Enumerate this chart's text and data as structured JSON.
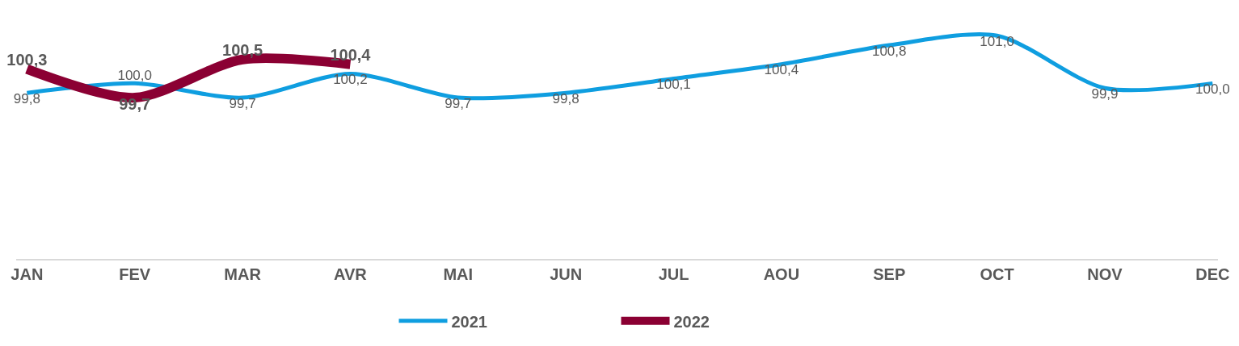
{
  "chart_data": {
    "type": "line",
    "categories": [
      "JAN",
      "FEV",
      "MAR",
      "AVR",
      "MAI",
      "JUN",
      "JUL",
      "AOU",
      "SEP",
      "OCT",
      "NOV",
      "DEC"
    ],
    "series": [
      {
        "name": "2021",
        "color": "#0f9ee0",
        "values": [
          99.8,
          100.0,
          99.7,
          100.2,
          99.7,
          99.8,
          100.1,
          100.4,
          100.8,
          101.0,
          99.9,
          100.0
        ],
        "value_labels": [
          "99,8",
          "100,0",
          "99,7",
          "100,2",
          "99,7",
          "99,8",
          "100,1",
          "100,4",
          "100,8",
          "101,0",
          "99,9",
          "100,0"
        ]
      },
      {
        "name": "2022",
        "color": "#8b0033",
        "values": [
          100.3,
          99.7,
          100.5,
          100.4,
          null,
          null,
          null,
          null,
          null,
          null,
          null,
          null
        ],
        "value_labels": [
          "100,3",
          "99,7",
          "100,5",
          "100,4",
          null,
          null,
          null,
          null,
          null,
          null,
          null,
          null
        ]
      }
    ],
    "tick_labels": "x",
    "legend": "bottom",
    "marker": "none",
    "line_style": "solid"
  }
}
